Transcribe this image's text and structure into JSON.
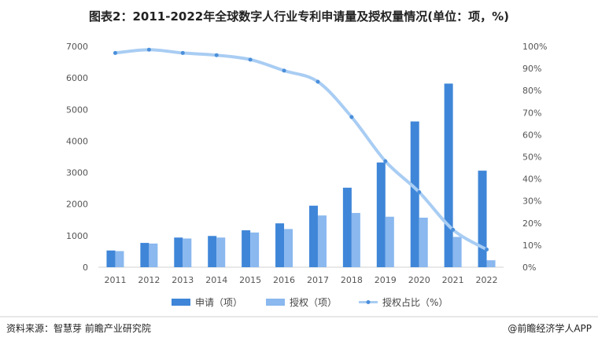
{
  "chart_data": {
    "type": "bar",
    "title": "图表2：2011-2022年全球数字人行业专利申请量及授权量情况(单位：项，%)",
    "categories": [
      "2011",
      "2012",
      "2013",
      "2014",
      "2015",
      "2016",
      "2017",
      "2018",
      "2019",
      "2020",
      "2021",
      "2022"
    ],
    "series": [
      {
        "name": "申请（项）",
        "type": "bar",
        "axis": "left",
        "color": "#3f86d8",
        "values": [
          530,
          770,
          940,
          990,
          1170,
          1390,
          1950,
          2520,
          3320,
          4620,
          5820,
          3060
        ]
      },
      {
        "name": "授权（项）",
        "type": "bar",
        "axis": "left",
        "color": "#8ab8ef",
        "values": [
          510,
          750,
          910,
          940,
          1100,
          1210,
          1640,
          1720,
          1600,
          1570,
          960,
          220
        ]
      },
      {
        "name": "授权占比（%）",
        "type": "line",
        "axis": "right",
        "color": "#a9cdf3",
        "values": [
          97,
          98.5,
          97,
          96,
          94,
          89,
          84,
          68,
          48,
          34,
          17,
          8
        ]
      }
    ],
    "y_left": {
      "min": 0,
      "max": 7000,
      "step": 1000,
      "ticks": [
        "0",
        "1000",
        "2000",
        "3000",
        "4000",
        "5000",
        "6000",
        "7000"
      ]
    },
    "y_right": {
      "min": 0,
      "max": 100,
      "step": 10,
      "ticks": [
        "0%",
        "10%",
        "20%",
        "30%",
        "40%",
        "50%",
        "60%",
        "70%",
        "80%",
        "90%",
        "100%"
      ]
    },
    "legend_position": "bottom",
    "grid": false
  },
  "footer": {
    "source": "资料来源：智慧芽 前瞻产业研究院",
    "brand": "@前瞻经济学人APP"
  }
}
